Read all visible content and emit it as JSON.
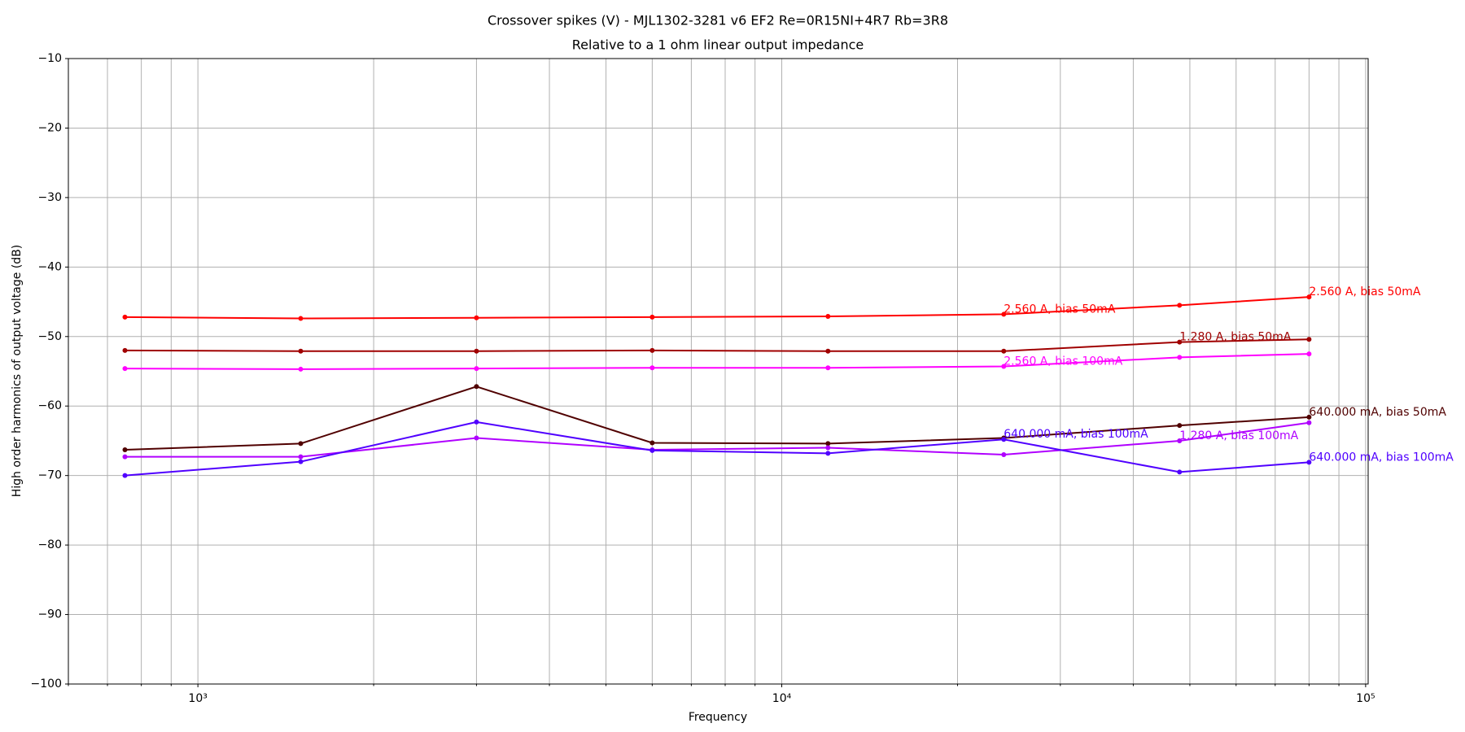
{
  "chart_data": {
    "type": "line",
    "title": "Crossover spikes (V) - MJL1302-3281 v6 EF2 Re=0R15NI+4R7 Rb=3R8",
    "subtitle": "Relative to a 1 ohm linear output impedance",
    "x_label": "Frequency",
    "y_label": "High order harmonics of output voltage (dB)",
    "x": [
      750,
      1500,
      3000,
      6000,
      12000,
      24000,
      48000,
      80000
    ],
    "xscale": "log",
    "xlim": [
      600,
      101000
    ],
    "xticks": [
      {
        "value": 1000,
        "label": "10³"
      },
      {
        "value": 10000,
        "label": "10⁴"
      },
      {
        "value": 100000,
        "label": "10⁵"
      }
    ],
    "ylim": [
      -100,
      -10
    ],
    "yticks": [
      {
        "value": -100,
        "label": "−100"
      },
      {
        "value": -90,
        "label": "−90"
      },
      {
        "value": -80,
        "label": "−80"
      },
      {
        "value": -70,
        "label": "−70"
      },
      {
        "value": -60,
        "label": "−60"
      },
      {
        "value": -50,
        "label": "−50"
      },
      {
        "value": -40,
        "label": "−40"
      },
      {
        "value": -30,
        "label": "−30"
      },
      {
        "value": -20,
        "label": "−20"
      },
      {
        "value": -10,
        "label": "−10"
      }
    ],
    "grid": true,
    "minor_grid": true,
    "series": [
      {
        "name": "2.560 A, bias 50mA",
        "color": "#ff0000",
        "values": [
          -47.2,
          -47.4,
          -47.3,
          -47.2,
          -47.1,
          -46.8,
          -45.5,
          -44.3
        ],
        "labeled_points": [
          5,
          7
        ]
      },
      {
        "name": "1.280 A, bias 50mA",
        "color": "#a00000",
        "values": [
          -52.0,
          -52.1,
          -52.1,
          -52.0,
          -52.1,
          -52.1,
          -50.8,
          -50.4
        ],
        "labeled_points": [
          6
        ]
      },
      {
        "name": "2.560 A, bias 100mA",
        "color": "#ff00ff",
        "values": [
          -54.6,
          -54.7,
          -54.6,
          -54.5,
          -54.5,
          -54.3,
          -53.0,
          -52.5
        ],
        "labeled_points": [
          5
        ]
      },
      {
        "name": "640.000 mA, bias 50mA",
        "color": "#500000",
        "values": [
          -66.3,
          -65.4,
          -57.2,
          -65.3,
          -65.4,
          -64.6,
          -62.8,
          -61.6
        ],
        "labeled_points": [
          7
        ]
      },
      {
        "name": "1.280 A, bias 100mA",
        "color": "#b000ff",
        "values": [
          -67.3,
          -67.3,
          -64.6,
          -66.3,
          -66.0,
          -67.0,
          -65.0,
          -62.4
        ],
        "labeled_points": [
          6
        ]
      },
      {
        "name": "640.000 mA, bias 100mA",
        "color": "#5000ff",
        "values": [
          -70.0,
          -68.0,
          -62.3,
          -66.4,
          -66.8,
          -64.8,
          -69.5,
          -68.1
        ],
        "labeled_points": [
          5,
          7
        ]
      }
    ]
  }
}
